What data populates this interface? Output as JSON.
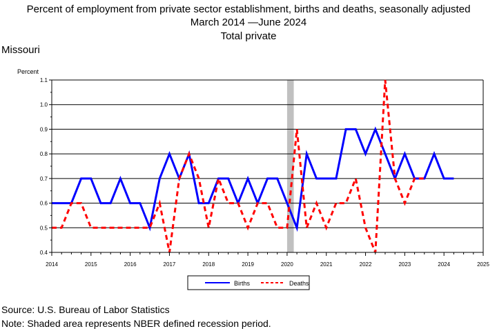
{
  "header": {
    "title_line1": "Percent of employment from private sector establishment, births and deaths, seasonally adjusted",
    "title_line2": "March 2014 —June 2024",
    "title_line3": "Total private",
    "region": "Missouri"
  },
  "footer": {
    "source": "Source: U.S. Bureau of Labor Statistics",
    "note": "Note: Shaded area represents NBER defined recession period."
  },
  "chart_data": {
    "type": "line",
    "ylabel": "Percent",
    "xlabel": "",
    "xlim": [
      2014,
      2025
    ],
    "ylim": [
      0.4,
      1.1
    ],
    "x_ticks": [
      "2014",
      "2015",
      "2016",
      "2017",
      "2018",
      "2019",
      "2020",
      "2021",
      "2022",
      "2023",
      "2024",
      "2025"
    ],
    "y_ticks": [
      "0.4",
      "0.5",
      "0.6",
      "0.7",
      "0.8",
      "0.9",
      "1.0",
      "1.1"
    ],
    "grid": "horizontal",
    "recession": {
      "start": 2020.0,
      "end": 2020.17
    },
    "legend_position": "bottom",
    "series": [
      {
        "name": "Births",
        "color": "#0000ff",
        "style": "solid",
        "x": [
          2014.0,
          2014.25,
          2014.5,
          2014.75,
          2015.0,
          2015.25,
          2015.5,
          2015.75,
          2016.0,
          2016.25,
          2016.5,
          2016.75,
          2017.0,
          2017.25,
          2017.5,
          2017.75,
          2018.0,
          2018.25,
          2018.5,
          2018.75,
          2019.0,
          2019.25,
          2019.5,
          2019.75,
          2020.0,
          2020.25,
          2020.5,
          2020.75,
          2021.0,
          2021.25,
          2021.5,
          2021.75,
          2022.0,
          2022.25,
          2022.5,
          2022.75,
          2023.0,
          2023.25,
          2023.5,
          2023.75,
          2024.0,
          2024.25
        ],
        "values": [
          0.6,
          0.6,
          0.6,
          0.7,
          0.7,
          0.6,
          0.6,
          0.7,
          0.6,
          0.6,
          0.5,
          0.7,
          0.8,
          0.7,
          0.8,
          0.6,
          0.6,
          0.7,
          0.7,
          0.6,
          0.7,
          0.6,
          0.7,
          0.7,
          0.6,
          0.5,
          0.8,
          0.7,
          0.7,
          0.7,
          0.9,
          0.9,
          0.8,
          0.9,
          0.8,
          0.7,
          0.8,
          0.7,
          0.7,
          0.8,
          0.7,
          0.7
        ]
      },
      {
        "name": "Deaths",
        "color": "#ff0000",
        "style": "dashed",
        "x": [
          2014.0,
          2014.25,
          2014.5,
          2014.75,
          2015.0,
          2015.25,
          2015.5,
          2015.75,
          2016.0,
          2016.25,
          2016.5,
          2016.75,
          2017.0,
          2017.25,
          2017.5,
          2017.75,
          2018.0,
          2018.25,
          2018.5,
          2018.75,
          2019.0,
          2019.25,
          2019.5,
          2019.75,
          2020.0,
          2020.25,
          2020.5,
          2020.75,
          2021.0,
          2021.25,
          2021.5,
          2021.75,
          2022.0,
          2022.25,
          2022.5,
          2022.75,
          2023.0,
          2023.25,
          2023.5
        ],
        "values": [
          0.5,
          0.5,
          0.6,
          0.6,
          0.5,
          0.5,
          0.5,
          0.5,
          0.5,
          0.5,
          0.5,
          0.6,
          0.4,
          0.7,
          0.8,
          0.7,
          0.5,
          0.7,
          0.6,
          0.6,
          0.5,
          0.6,
          0.6,
          0.5,
          0.5,
          0.9,
          0.5,
          0.6,
          0.5,
          0.6,
          0.6,
          0.7,
          0.5,
          0.4,
          1.1,
          0.7,
          0.6,
          0.7,
          0.7
        ]
      }
    ]
  }
}
